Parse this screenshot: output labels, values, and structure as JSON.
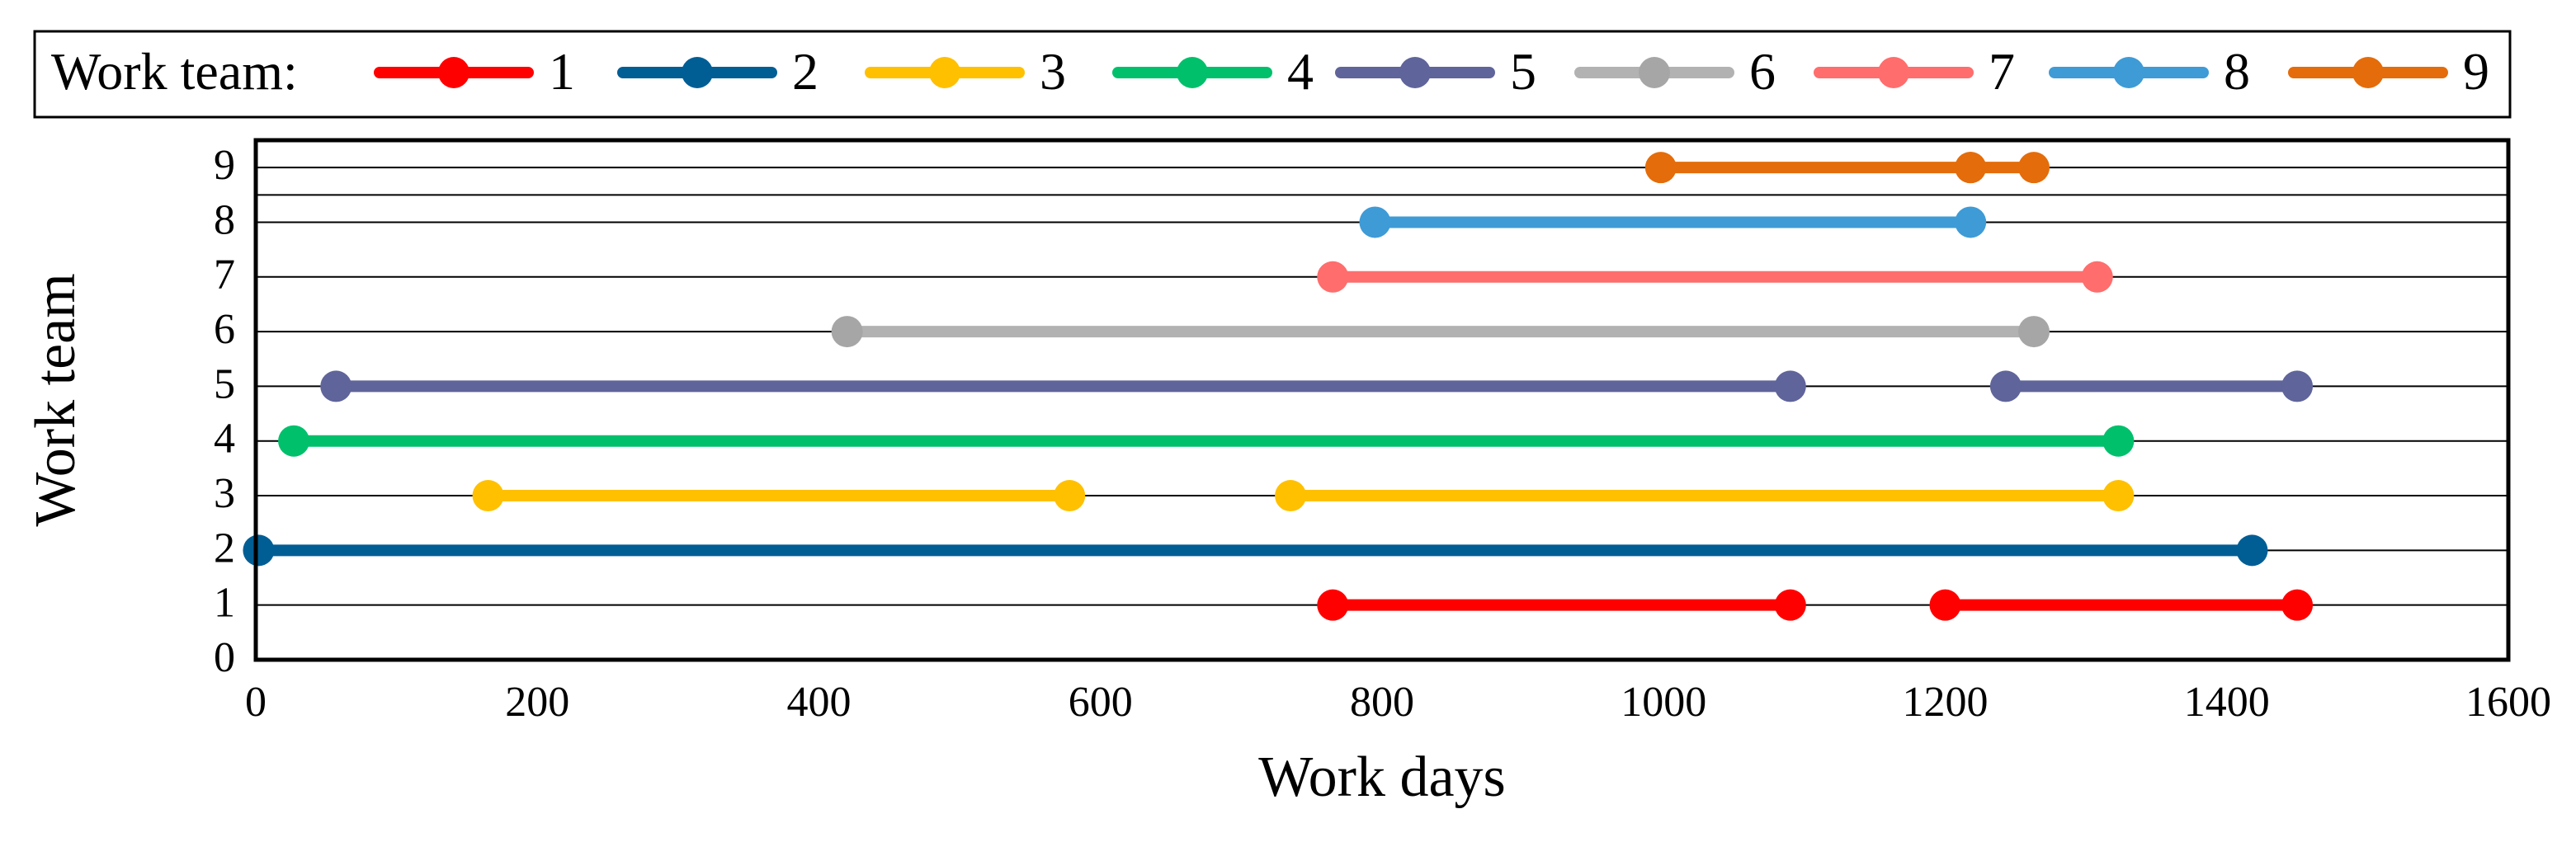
{
  "chart_data": {
    "type": "line",
    "title": "",
    "xlabel": "Work days",
    "ylabel": "Work team",
    "xlim": [
      0,
      1600
    ],
    "ylim": [
      0,
      9
    ],
    "xticks": [
      0,
      200,
      400,
      600,
      800,
      1000,
      1200,
      1400,
      1600
    ],
    "yticks": [
      0,
      1,
      2,
      3,
      4,
      5,
      6,
      7,
      8,
      9
    ],
    "grid": "horizontal",
    "legend": {
      "title": "Work team:",
      "placement": "top"
    },
    "series": [
      {
        "name": "1",
        "color": "#FF0000",
        "y": 1,
        "segments": [
          [
            765,
            1090
          ],
          [
            1200,
            1450
          ]
        ]
      },
      {
        "name": "2",
        "color": "#005E95",
        "y": 2,
        "segments": [
          [
            2,
            1418
          ]
        ]
      },
      {
        "name": "3",
        "color": "#FFC000",
        "y": 3,
        "segments": [
          [
            165,
            578
          ],
          [
            735,
            1323
          ]
        ]
      },
      {
        "name": "4",
        "color": "#00C06C",
        "y": 4,
        "segments": [
          [
            27,
            1323
          ]
        ]
      },
      {
        "name": "5",
        "color": "#5F649A",
        "y": 5,
        "segments": [
          [
            57,
            1090
          ],
          [
            1243,
            1450
          ]
        ]
      },
      {
        "name": "6",
        "color": "#A6A6A6",
        "line_color": "#B2B2B2",
        "y": 6,
        "segments": [
          [
            420,
            1263
          ]
        ]
      },
      {
        "name": "7",
        "color": "#FF6D6D",
        "y": 7,
        "segments": [
          [
            765,
            1308
          ]
        ]
      },
      {
        "name": "8",
        "color": "#3E9BD6",
        "y": 8,
        "segments": [
          [
            795,
            1218
          ]
        ]
      },
      {
        "name": "9",
        "color": "#E46C0A",
        "y": 9,
        "segments": [
          [
            998,
            1218
          ],
          [
            1218,
            1263
          ]
        ]
      }
    ]
  }
}
